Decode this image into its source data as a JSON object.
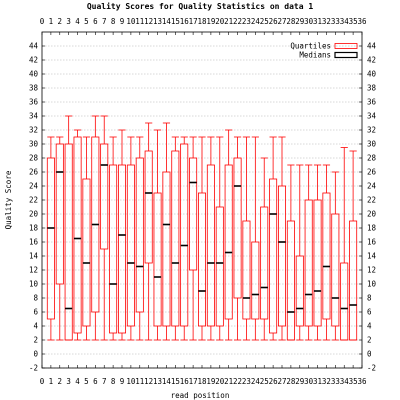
{
  "chart_data": {
    "type": "box",
    "title": "Quality Scores for Quality Statistics on data 1",
    "xlabel": "read position",
    "ylabel": "Quality Score",
    "xlim": [
      0,
      36
    ],
    "ylim": [
      -2,
      46
    ],
    "x_ticks": [
      0,
      1,
      2,
      3,
      4,
      5,
      6,
      7,
      8,
      9,
      10,
      11,
      12,
      13,
      14,
      15,
      16,
      17,
      18,
      19,
      20,
      21,
      22,
      23,
      24,
      25,
      26,
      27,
      28,
      29,
      30,
      31,
      32,
      33,
      34,
      35,
      36
    ],
    "y_ticks": [
      -2,
      0,
      2,
      4,
      6,
      8,
      10,
      12,
      14,
      16,
      18,
      20,
      22,
      24,
      26,
      28,
      30,
      32,
      34,
      36,
      38,
      40,
      42,
      44
    ],
    "grid": true,
    "legend": {
      "position": "top-right",
      "entries": [
        {
          "name": "Quartiles",
          "color": "#ff0000"
        },
        {
          "name": "Medians",
          "color": "#000000"
        }
      ]
    },
    "colors": {
      "box": "#ff0000",
      "median": "#000000",
      "grid": "#b0b0b0"
    },
    "series": [
      {
        "x": 1,
        "min": 2,
        "q1": 5,
        "median": 18,
        "q3": 28,
        "max": 31
      },
      {
        "x": 2,
        "min": 2,
        "q1": 10,
        "median": 26,
        "q3": 30,
        "max": 31
      },
      {
        "x": 3,
        "min": 2,
        "q1": 2,
        "median": 6.5,
        "q3": 30,
        "max": 34
      },
      {
        "x": 4,
        "min": 2,
        "q1": 3,
        "median": 16.5,
        "q3": 31,
        "max": 32
      },
      {
        "x": 5,
        "min": 2,
        "q1": 4,
        "median": 13,
        "q3": 25,
        "max": 31
      },
      {
        "x": 6,
        "min": 2,
        "q1": 6,
        "median": 18.5,
        "q3": 31,
        "max": 34
      },
      {
        "x": 7,
        "min": 2,
        "q1": 15,
        "median": 27,
        "q3": 30,
        "max": 34
      },
      {
        "x": 8,
        "min": 2,
        "q1": 3,
        "median": 10,
        "q3": 27,
        "max": 31
      },
      {
        "x": 9,
        "min": 2,
        "q1": 3,
        "median": 17,
        "q3": 27,
        "max": 32
      },
      {
        "x": 10,
        "min": 2,
        "q1": 4,
        "median": 13,
        "q3": 27,
        "max": 31
      },
      {
        "x": 11,
        "min": 2,
        "q1": 6,
        "median": 12.5,
        "q3": 28,
        "max": 31
      },
      {
        "x": 12,
        "min": 2,
        "q1": 13,
        "median": 23,
        "q3": 29,
        "max": 33
      },
      {
        "x": 13,
        "min": 2,
        "q1": 4,
        "median": 11,
        "q3": 23,
        "max": 32
      },
      {
        "x": 14,
        "min": 2,
        "q1": 4,
        "median": 18.5,
        "q3": 26,
        "max": 33
      },
      {
        "x": 15,
        "min": 2,
        "q1": 4,
        "median": 13,
        "q3": 29,
        "max": 31
      },
      {
        "x": 16,
        "min": 2,
        "q1": 4,
        "median": 15.5,
        "q3": 30,
        "max": 31
      },
      {
        "x": 17,
        "min": 2,
        "q1": 12,
        "median": 24.5,
        "q3": 28,
        "max": 31
      },
      {
        "x": 18,
        "min": 2,
        "q1": 4,
        "median": 9,
        "q3": 23,
        "max": 31
      },
      {
        "x": 19,
        "min": 2,
        "q1": 4,
        "median": 13,
        "q3": 27,
        "max": 31
      },
      {
        "x": 20,
        "min": 2,
        "q1": 4,
        "median": 13,
        "q3": 21,
        "max": 31
      },
      {
        "x": 21,
        "min": 2,
        "q1": 5,
        "median": 14.5,
        "q3": 27,
        "max": 32
      },
      {
        "x": 22,
        "min": 2,
        "q1": 8,
        "median": 24,
        "q3": 28,
        "max": 31
      },
      {
        "x": 23,
        "min": 2,
        "q1": 5,
        "median": 8,
        "q3": 19,
        "max": 31
      },
      {
        "x": 24,
        "min": 2,
        "q1": 5,
        "median": 8.5,
        "q3": 16,
        "max": 31
      },
      {
        "x": 25,
        "min": 2,
        "q1": 5,
        "median": 9.5,
        "q3": 21,
        "max": 28
      },
      {
        "x": 26,
        "min": 2,
        "q1": 3,
        "median": 20,
        "q3": 25,
        "max": 31
      },
      {
        "x": 27,
        "min": 2,
        "q1": 4,
        "median": 16,
        "q3": 24,
        "max": 31
      },
      {
        "x": 28,
        "min": 2,
        "q1": 2,
        "median": 6,
        "q3": 19,
        "max": 27
      },
      {
        "x": 29,
        "min": 2,
        "q1": 4,
        "median": 6.5,
        "q3": 14,
        "max": 27
      },
      {
        "x": 30,
        "min": 2,
        "q1": 4,
        "median": 8.5,
        "q3": 22,
        "max": 27
      },
      {
        "x": 31,
        "min": 2,
        "q1": 4,
        "median": 9,
        "q3": 22,
        "max": 27
      },
      {
        "x": 32,
        "min": 2,
        "q1": 5,
        "median": 12.5,
        "q3": 23,
        "max": 27
      },
      {
        "x": 33,
        "min": 2,
        "q1": 4,
        "median": 8,
        "q3": 20,
        "max": 26
      },
      {
        "x": 34,
        "min": 2,
        "q1": 2,
        "median": 6.5,
        "q3": 13,
        "max": 29.5
      },
      {
        "x": 35,
        "min": 2,
        "q1": 2,
        "median": 7,
        "q3": 19,
        "max": 29
      }
    ]
  }
}
